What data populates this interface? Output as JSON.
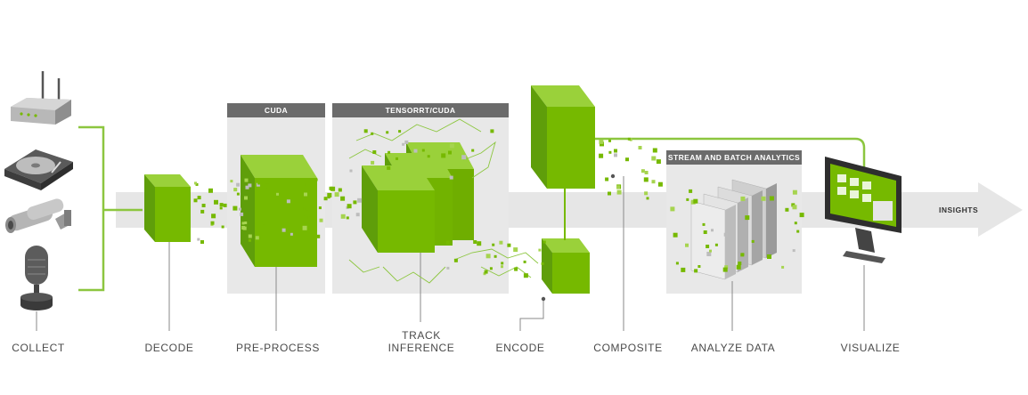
{
  "colors": {
    "green": "#76b900",
    "green_light": "#9ad13a",
    "green_dark": "#4f8c00",
    "panel_bg": "#e8e8e8",
    "header_bg": "#6b6b6b",
    "arrow": "#e6e6e6",
    "text": "#4a4a4a"
  },
  "panels": {
    "cuda": "CUDA",
    "tensorrt": "TENSORRT/CUDA",
    "analytics": "STREAM AND BATCH ANALYTICS"
  },
  "arrow_label": "INSIGHTS",
  "stages": {
    "collect": "COLLECT",
    "decode": "DECODE",
    "preprocess": "PRE-PROCESS",
    "track_inference_1": "TRACK",
    "track_inference_2": "INFERENCE",
    "encode": "ENCODE",
    "composite": "COMPOSITE",
    "analyze": "ANALYZE DATA",
    "visualize": "VISUALIZE"
  },
  "devices": [
    "router-icon",
    "hard-drive-icon",
    "security-camera-icon",
    "microphone-icon"
  ]
}
